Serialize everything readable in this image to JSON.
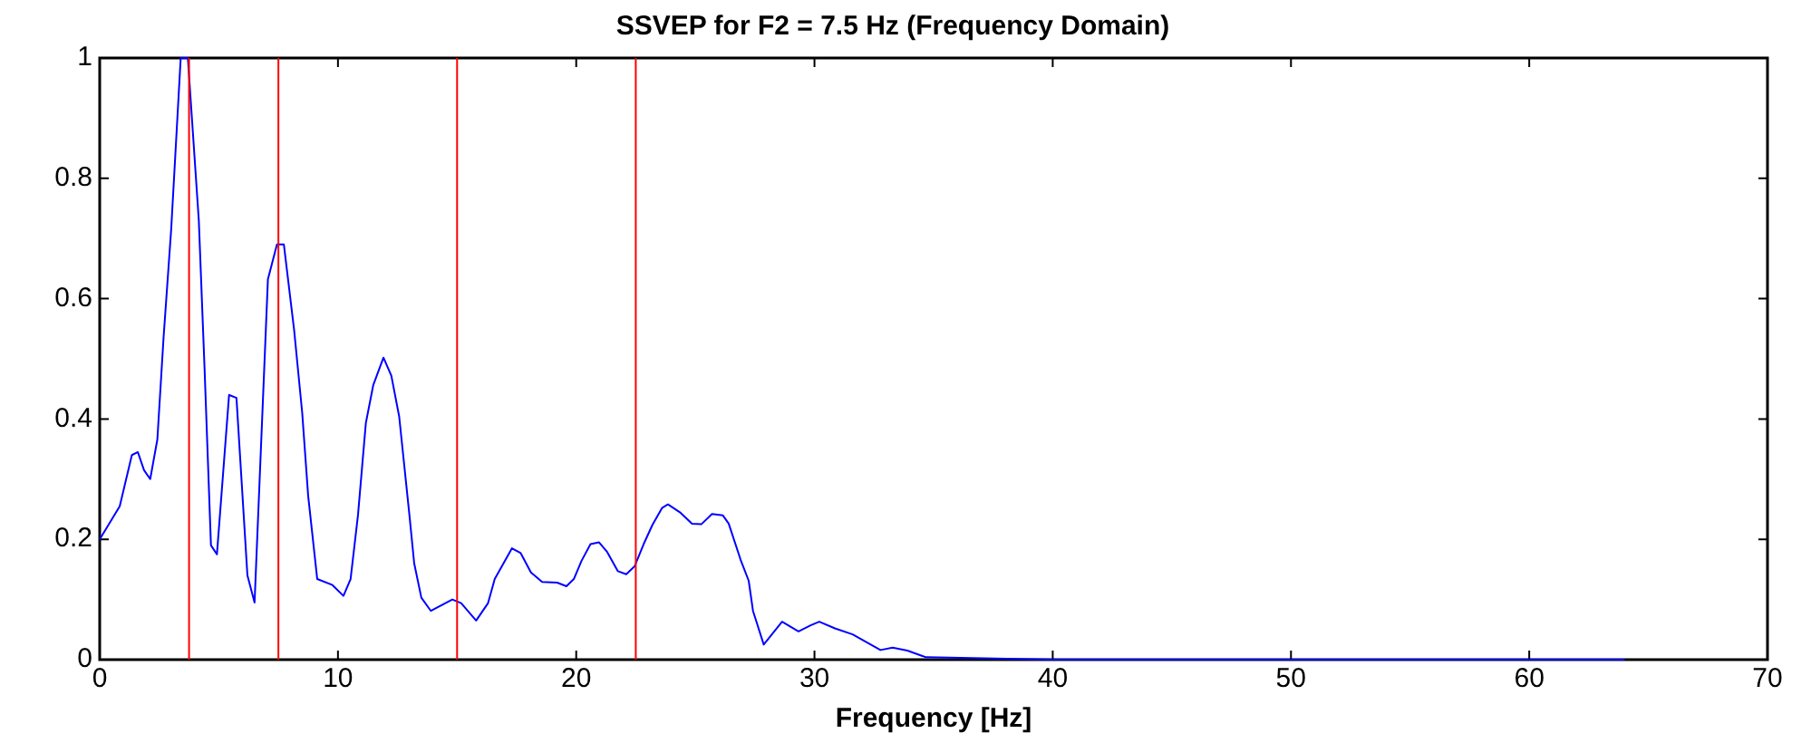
{
  "chart_data": {
    "type": "line",
    "title": "SSVEP for F2 = 7.5 Hz (Frequency Domain)",
    "xlabel": "Frequency [Hz]",
    "xlim": [
      0,
      70
    ],
    "xticks": [
      0,
      10,
      20,
      30,
      40,
      50,
      60,
      70
    ],
    "ylim": [
      0,
      1
    ],
    "yticks": [
      0,
      0.2,
      0.4,
      0.6,
      0.8,
      1
    ],
    "grid": false,
    "legend": false,
    "marker": "none",
    "line_style": "solid",
    "ref_lines": [
      {
        "axis": "x",
        "value": 3.75,
        "color": "#ff0000",
        "line_style": "solid"
      },
      {
        "axis": "x",
        "value": 7.5,
        "color": "#ff0000",
        "line_style": "solid"
      },
      {
        "axis": "x",
        "value": 15,
        "color": "#ff0000",
        "line_style": "solid"
      },
      {
        "axis": "x",
        "value": 22.5,
        "color": "#ff0000",
        "line_style": "solid"
      }
    ],
    "series": [
      {
        "color": "#0000ff",
        "x": [
          0,
          0.84,
          1.35,
          1.6,
          1.86,
          2.12,
          2.42,
          2.68,
          3.0,
          3.4,
          3.7,
          4.16,
          4.4,
          4.67,
          4.92,
          5.43,
          5.74,
          6.2,
          6.5,
          7.06,
          7.44,
          7.73,
          8.16,
          8.5,
          8.75,
          9.13,
          9.77,
          10.23,
          10.53,
          10.84,
          11.17,
          11.48,
          11.91,
          12.24,
          12.57,
          13.0,
          13.2,
          13.5,
          13.9,
          14.8,
          15.17,
          15.8,
          16.3,
          16.58,
          17.3,
          17.67,
          18.1,
          18.57,
          19.2,
          19.59,
          19.9,
          20.22,
          20.6,
          20.96,
          21.3,
          21.75,
          22.1,
          22.45,
          22.83,
          23.2,
          23.6,
          23.85,
          24.35,
          24.86,
          25.25,
          25.7,
          26.15,
          26.4,
          26.9,
          27.24,
          27.42,
          27.87,
          28.64,
          29.33,
          29.84,
          30.2,
          30.86,
          31.6,
          32.77,
          33.28,
          33.9,
          34.68,
          40,
          50,
          64
        ],
        "values": [
          0.2,
          0.255,
          0.34,
          0.345,
          0.315,
          0.3,
          0.366,
          0.535,
          0.715,
          1.0,
          1.0,
          0.73,
          0.485,
          0.19,
          0.175,
          0.44,
          0.435,
          0.14,
          0.095,
          0.632,
          0.69,
          0.69,
          0.548,
          0.41,
          0.272,
          0.134,
          0.124,
          0.106,
          0.134,
          0.24,
          0.393,
          0.456,
          0.502,
          0.472,
          0.404,
          0.24,
          0.16,
          0.103,
          0.081,
          0.1,
          0.094,
          0.065,
          0.094,
          0.134,
          0.185,
          0.177,
          0.145,
          0.129,
          0.128,
          0.122,
          0.134,
          0.164,
          0.192,
          0.195,
          0.179,
          0.147,
          0.142,
          0.155,
          0.192,
          0.224,
          0.252,
          0.258,
          0.245,
          0.226,
          0.225,
          0.242,
          0.24,
          0.226,
          0.166,
          0.131,
          0.081,
          0.025,
          0.063,
          0.047,
          0.057,
          0.063,
          0.052,
          0.042,
          0.016,
          0.02,
          0.015,
          0.004,
          0,
          0,
          0
        ]
      }
    ]
  }
}
